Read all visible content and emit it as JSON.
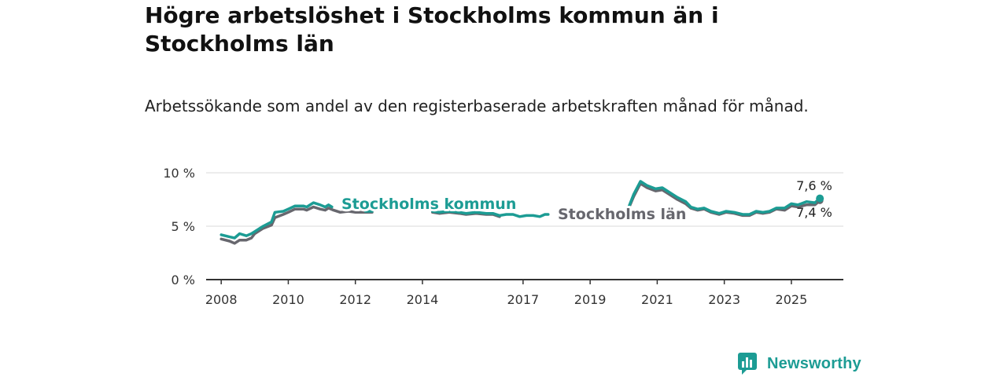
{
  "title": "Högre arbetslöshet i Stockholms kommun än i Stockholms län",
  "subtitle": "Arbetssökande som andel av den registerbaserade arbetskraften månad för månad.",
  "brand": {
    "name": "Newsworthy",
    "color": "#1c9c94"
  },
  "chart_data": {
    "type": "line",
    "title": "Högre arbetslöshet i Stockholms kommun än i Stockholms län",
    "subtitle": "Arbetssökande som andel av den registerbaserade arbetskraften månad för månad.",
    "xlabel": "",
    "ylabel": "",
    "ylim": [
      0,
      10
    ],
    "y_ticks": [
      0,
      5,
      10
    ],
    "y_tick_labels": [
      "0 %",
      "5 %",
      "10 %"
    ],
    "x_ticks": [
      2008,
      2010,
      2012,
      2014,
      2017,
      2019,
      2021,
      2023,
      2025
    ],
    "x_tick_labels": [
      "2008",
      "2010",
      "2012",
      "2014",
      "2017",
      "2019",
      "2021",
      "2023",
      "2025"
    ],
    "grid": "horizontal",
    "series": [
      {
        "name": "Stockholms kommun",
        "color": "#1c9c94",
        "end_label": "7,6 %",
        "segments": [
          [
            [
              2008.0,
              4.2
            ],
            [
              2008.25,
              4.0
            ],
            [
              2008.4,
              3.9
            ],
            [
              2008.55,
              4.3
            ],
            [
              2008.75,
              4.1
            ],
            [
              2008.9,
              4.3
            ],
            [
              2009.0,
              4.5
            ],
            [
              2009.25,
              5.0
            ],
            [
              2009.5,
              5.4
            ],
            [
              2009.6,
              6.3
            ],
            [
              2009.85,
              6.4
            ],
            [
              2010.0,
              6.6
            ],
            [
              2010.2,
              6.9
            ],
            [
              2010.45,
              6.9
            ],
            [
              2010.55,
              6.8
            ],
            [
              2010.75,
              7.2
            ],
            [
              2010.95,
              7.0
            ],
            [
              2011.1,
              6.8
            ],
            [
              2011.2,
              7.0
            ],
            [
              2011.3,
              6.8
            ]
          ],
          [
            [
              2012.3,
              6.4
            ],
            [
              2012.5,
              6.4
            ]
          ],
          [
            [
              2014.3,
              6.4
            ],
            [
              2014.5,
              6.3
            ],
            [
              2014.8,
              6.4
            ],
            [
              2015.1,
              6.3
            ],
            [
              2015.3,
              6.2
            ],
            [
              2015.6,
              6.3
            ],
            [
              2015.9,
              6.2
            ],
            [
              2016.1,
              6.2
            ],
            [
              2016.3,
              6.0
            ],
            [
              2016.5,
              6.1
            ],
            [
              2016.7,
              6.1
            ],
            [
              2016.9,
              5.9
            ],
            [
              2017.1,
              6.0
            ],
            [
              2017.3,
              6.0
            ],
            [
              2017.5,
              5.9
            ],
            [
              2017.65,
              6.1
            ],
            [
              2017.75,
              6.1
            ]
          ]
        ],
        "points": [
          [
            2020.15,
            6.8
          ],
          [
            2020.3,
            8.0
          ],
          [
            2020.5,
            9.2
          ],
          [
            2020.7,
            8.8
          ],
          [
            2020.95,
            8.5
          ],
          [
            2021.15,
            8.6
          ],
          [
            2021.35,
            8.2
          ],
          [
            2021.6,
            7.7
          ],
          [
            2021.85,
            7.3
          ],
          [
            2022.0,
            6.8
          ],
          [
            2022.2,
            6.6
          ],
          [
            2022.4,
            6.7
          ],
          [
            2022.6,
            6.4
          ],
          [
            2022.85,
            6.2
          ],
          [
            2023.05,
            6.4
          ],
          [
            2023.3,
            6.3
          ],
          [
            2023.55,
            6.1
          ],
          [
            2023.75,
            6.1
          ],
          [
            2023.95,
            6.4
          ],
          [
            2024.15,
            6.3
          ],
          [
            2024.35,
            6.4
          ],
          [
            2024.55,
            6.7
          ],
          [
            2024.8,
            6.7
          ],
          [
            2025.0,
            7.1
          ],
          [
            2025.2,
            7.0
          ],
          [
            2025.45,
            7.3
          ],
          [
            2025.7,
            7.2
          ],
          [
            2025.85,
            7.6
          ]
        ]
      },
      {
        "name": "Stockholms län",
        "color": "#67676e",
        "end_label": "7,4 %",
        "segments": [
          [
            [
              2008.0,
              3.8
            ],
            [
              2008.25,
              3.6
            ],
            [
              2008.4,
              3.4
            ],
            [
              2008.55,
              3.7
            ],
            [
              2008.75,
              3.7
            ],
            [
              2008.9,
              3.9
            ],
            [
              2009.0,
              4.3
            ],
            [
              2009.25,
              4.8
            ],
            [
              2009.5,
              5.1
            ],
            [
              2009.6,
              5.8
            ],
            [
              2009.85,
              6.1
            ],
            [
              2010.0,
              6.3
            ],
            [
              2010.2,
              6.6
            ],
            [
              2010.45,
              6.6
            ],
            [
              2010.55,
              6.5
            ],
            [
              2010.75,
              6.8
            ],
            [
              2010.95,
              6.6
            ],
            [
              2011.1,
              6.5
            ],
            [
              2011.2,
              6.7
            ],
            [
              2011.35,
              6.5
            ],
            [
              2011.55,
              6.3
            ],
            [
              2011.8,
              6.4
            ],
            [
              2012.0,
              6.3
            ],
            [
              2012.3,
              6.3
            ],
            [
              2012.5,
              6.3
            ]
          ],
          [
            [
              2014.3,
              6.3
            ],
            [
              2014.5,
              6.2
            ],
            [
              2014.8,
              6.3
            ],
            [
              2015.1,
              6.2
            ],
            [
              2015.3,
              6.1
            ],
            [
              2015.6,
              6.2
            ],
            [
              2015.9,
              6.1
            ],
            [
              2016.1,
              6.1
            ],
            [
              2016.3,
              5.9
            ]
          ]
        ],
        "points": [
          [
            2020.15,
            6.7
          ],
          [
            2020.3,
            7.8
          ],
          [
            2020.5,
            9.0
          ],
          [
            2020.7,
            8.6
          ],
          [
            2020.95,
            8.3
          ],
          [
            2021.15,
            8.4
          ],
          [
            2021.35,
            8.0
          ],
          [
            2021.6,
            7.5
          ],
          [
            2021.85,
            7.1
          ],
          [
            2022.0,
            6.7
          ],
          [
            2022.2,
            6.5
          ],
          [
            2022.4,
            6.6
          ],
          [
            2022.6,
            6.3
          ],
          [
            2022.85,
            6.1
          ],
          [
            2023.05,
            6.3
          ],
          [
            2023.3,
            6.2
          ],
          [
            2023.55,
            6.0
          ],
          [
            2023.75,
            6.0
          ],
          [
            2023.95,
            6.3
          ],
          [
            2024.15,
            6.2
          ],
          [
            2024.35,
            6.3
          ],
          [
            2024.55,
            6.6
          ],
          [
            2024.8,
            6.5
          ],
          [
            2025.0,
            6.9
          ],
          [
            2025.2,
            6.8
          ],
          [
            2025.45,
            7.0
          ],
          [
            2025.7,
            7.0
          ],
          [
            2025.85,
            7.4
          ]
        ]
      }
    ]
  }
}
